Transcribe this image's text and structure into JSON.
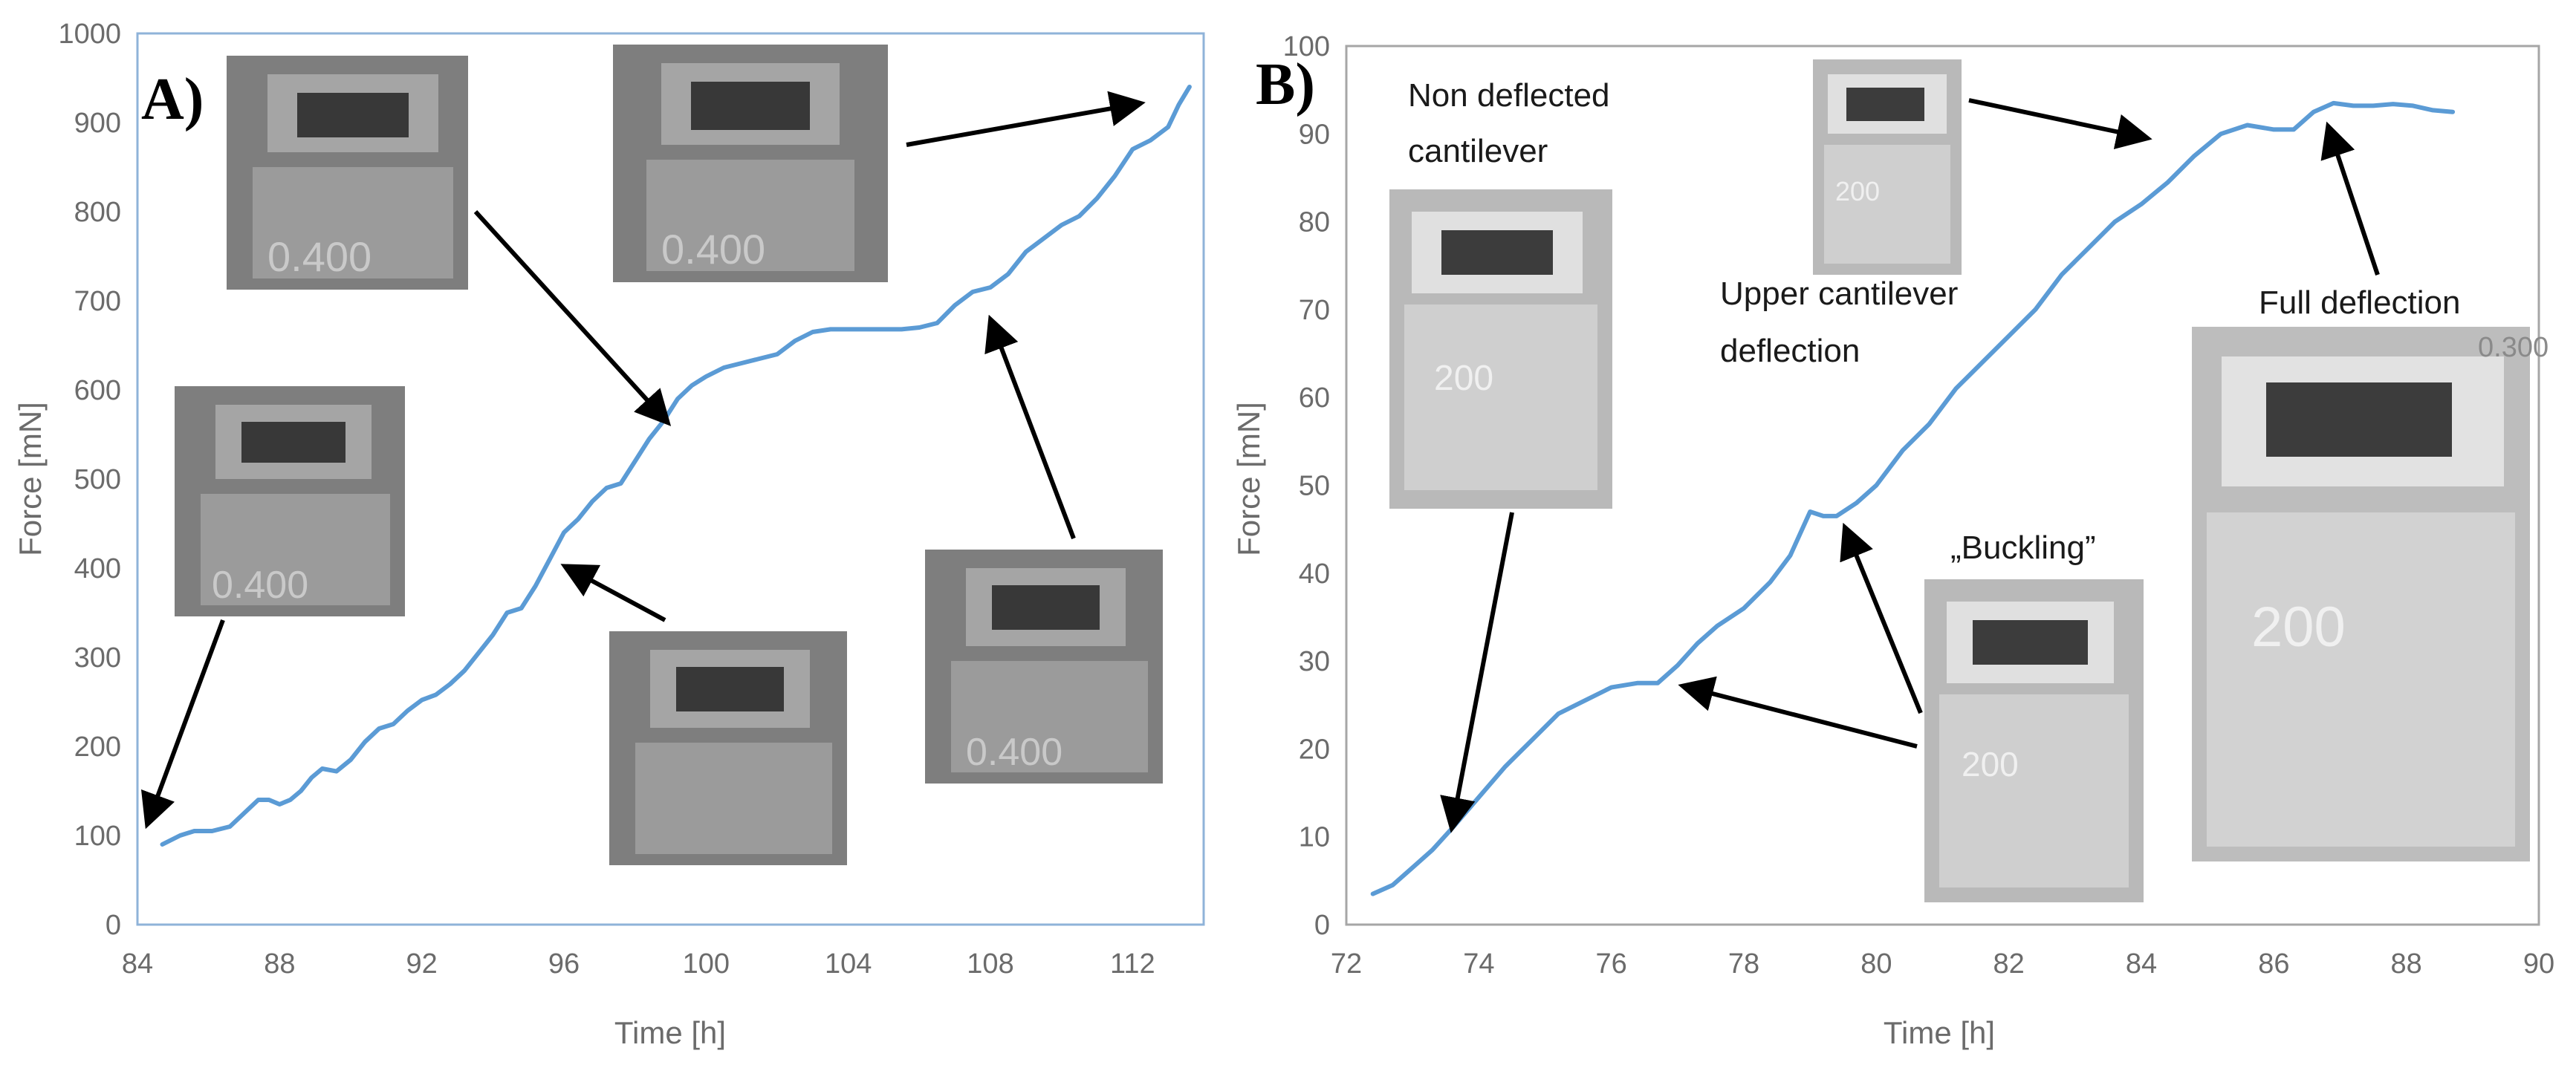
{
  "chart_data": [
    {
      "type": "line",
      "panel_label": "A)",
      "xlabel": "Time [h]",
      "ylabel": "Force [mN]",
      "xlim": [
        84,
        114
      ],
      "ylim": [
        0,
        1000
      ],
      "xticks": [
        84,
        88,
        92,
        96,
        100,
        104,
        108,
        112
      ],
      "yticks": [
        0,
        100,
        200,
        300,
        400,
        500,
        600,
        700,
        800,
        900,
        1000
      ],
      "grid": false,
      "series": [
        {
          "color": "#5b9bd5",
          "x": [
            84.7,
            85.2,
            85.6,
            86.1,
            86.6,
            87.0,
            87.4,
            87.7,
            88.0,
            88.3,
            88.6,
            88.9,
            89.2,
            89.6,
            90.0,
            90.4,
            90.8,
            91.2,
            91.6,
            92.0,
            92.4,
            92.8,
            93.2,
            93.6,
            94.0,
            94.4,
            94.8,
            95.2,
            95.6,
            96.0,
            96.4,
            96.8,
            97.2,
            97.6,
            98.0,
            98.4,
            98.8,
            99.2,
            99.6,
            100.0,
            100.5,
            101.0,
            101.5,
            102.0,
            102.5,
            103.0,
            103.5,
            104.0,
            104.5,
            105.0,
            105.5,
            106.0,
            106.5,
            107.0,
            107.5,
            108.0,
            108.5,
            109.0,
            109.5,
            110.0,
            110.5,
            111.0,
            111.5,
            112.0,
            112.5,
            113.0,
            113.3,
            113.6
          ],
          "y": [
            90,
            100,
            105,
            105,
            110,
            125,
            140,
            140,
            135,
            140,
            150,
            165,
            175,
            172,
            185,
            205,
            220,
            225,
            240,
            252,
            258,
            270,
            285,
            305,
            325,
            350,
            355,
            380,
            410,
            440,
            455,
            475,
            490,
            495,
            520,
            545,
            565,
            590,
            605,
            615,
            625,
            630,
            635,
            640,
            655,
            665,
            668,
            668,
            668,
            668,
            668,
            670,
            675,
            695,
            710,
            715,
            730,
            755,
            770,
            785,
            795,
            815,
            840,
            870,
            880,
            895,
            920,
            940
          ]
        }
      ]
    },
    {
      "type": "line",
      "panel_label": "B)",
      "xlabel": "Time [h]",
      "ylabel": "Force [mN]",
      "xlim": [
        72,
        90
      ],
      "ylim": [
        0,
        100
      ],
      "xticks": [
        72,
        74,
        76,
        78,
        80,
        82,
        84,
        86,
        88,
        90
      ],
      "yticks": [
        0,
        10,
        20,
        30,
        40,
        50,
        60,
        70,
        80,
        90,
        100
      ],
      "grid": false,
      "series": [
        {
          "color": "#5b9bd5",
          "x": [
            72.4,
            72.7,
            73.0,
            73.3,
            73.6,
            74.0,
            74.4,
            74.8,
            75.2,
            75.6,
            76.0,
            76.4,
            76.7,
            77.0,
            77.3,
            77.6,
            78.0,
            78.4,
            78.7,
            79.0,
            79.2,
            79.4,
            79.7,
            80.0,
            80.4,
            80.8,
            81.2,
            81.6,
            82.0,
            82.4,
            82.8,
            83.2,
            83.6,
            84.0,
            84.4,
            84.8,
            85.2,
            85.6,
            86.0,
            86.3,
            86.6,
            86.9,
            87.2,
            87.5,
            87.8,
            88.1,
            88.4,
            88.7
          ],
          "y": [
            3.5,
            4.5,
            6.5,
            8.5,
            11,
            14.5,
            18,
            21,
            24,
            25.5,
            27,
            27.5,
            27.5,
            29.5,
            32,
            34,
            36,
            39,
            42,
            47,
            46.5,
            46.5,
            48,
            50,
            54,
            57,
            61,
            64,
            67,
            70,
            74,
            77,
            80,
            82,
            84.5,
            87.5,
            90,
            91,
            90.5,
            90.5,
            92.5,
            93.5,
            93.2,
            93.2,
            93.4,
            93.2,
            92.7,
            92.5
          ]
        }
      ]
    }
  ],
  "annotations": {
    "a_photo_labels": [
      "0.400",
      "0.400",
      "0.400",
      "0.400"
    ],
    "b_photo_labels": [
      "200",
      "200",
      "200",
      "0.300",
      "200"
    ],
    "b_text": {
      "non_deflected_1": "Non deflected",
      "non_deflected_2": "cantilever",
      "upper_1": "Upper cantilever",
      "upper_2": "deflection",
      "buckling": "„Buckling”",
      "full": "Full deflection"
    }
  }
}
